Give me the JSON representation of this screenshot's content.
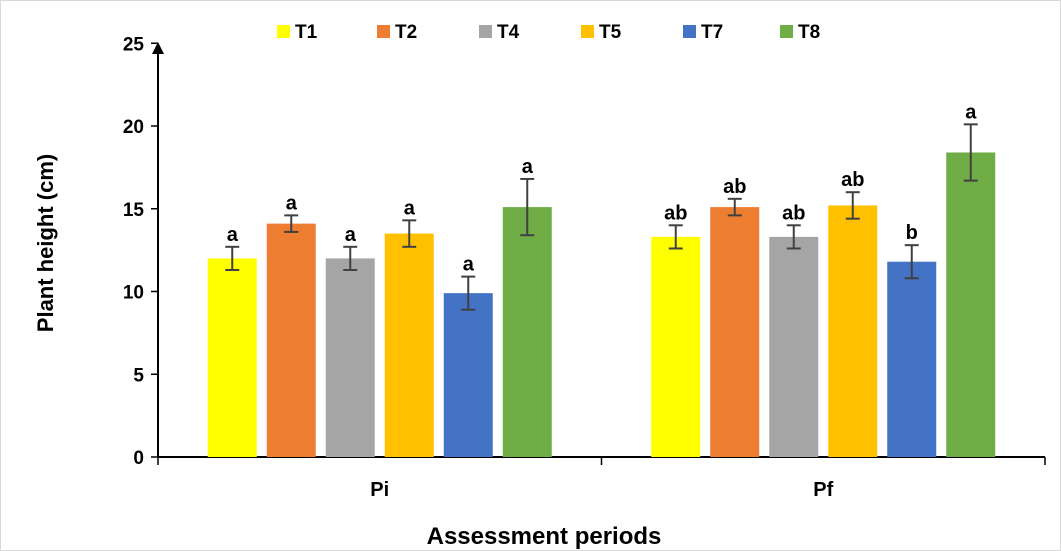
{
  "chart_data": {
    "type": "bar",
    "categories": [
      "Pi",
      "Pf"
    ],
    "series": [
      {
        "name": "T1",
        "color": "#ffff00",
        "values": [
          12.0,
          13.3
        ],
        "errors": [
          0.7,
          0.7
        ],
        "letters": [
          "a",
          "ab"
        ]
      },
      {
        "name": "T2",
        "color": "#ed7d31",
        "values": [
          14.1,
          15.1
        ],
        "errors": [
          0.5,
          0.5
        ],
        "letters": [
          "a",
          "ab"
        ]
      },
      {
        "name": "T4",
        "color": "#a5a5a5",
        "values": [
          12.0,
          13.3
        ],
        "errors": [
          0.7,
          0.7
        ],
        "letters": [
          "a",
          "ab"
        ]
      },
      {
        "name": "T5",
        "color": "#ffc000",
        "values": [
          13.5,
          15.2
        ],
        "errors": [
          0.8,
          0.8
        ],
        "letters": [
          "a",
          "ab"
        ]
      },
      {
        "name": "T7",
        "color": "#4472c4",
        "values": [
          9.9,
          11.8
        ],
        "errors": [
          1.0,
          1.0
        ],
        "letters": [
          "a",
          "b"
        ]
      },
      {
        "name": "T8",
        "color": "#70ad47",
        "values": [
          15.1,
          18.4
        ],
        "errors": [
          1.7,
          1.7
        ],
        "letters": [
          "a",
          "a"
        ]
      }
    ],
    "xlabel": "Assessment periods",
    "ylabel": "Plant height (cm)",
    "ylim": [
      0,
      25
    ],
    "yticks": [
      0,
      5,
      10,
      15,
      20,
      25
    ],
    "grid": false,
    "legend": "top"
  }
}
